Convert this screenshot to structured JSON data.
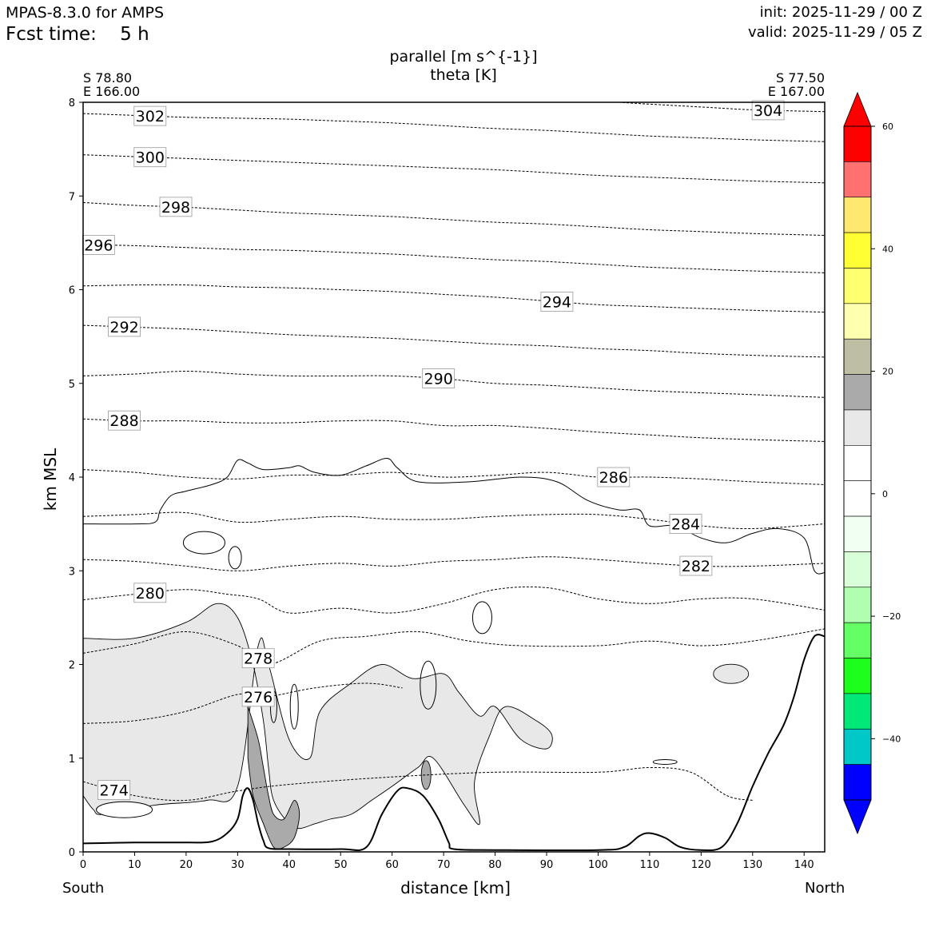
{
  "header": {
    "model": "MPAS-8.3.0 for AMPS",
    "fcst": "Fcst time:    5 h",
    "init": "init: 2025-11-29 / 00 Z",
    "valid": "valid: 2025-11-29 / 05 Z",
    "field1": "parallel [m s^{-1}]",
    "field2": "theta [K]"
  },
  "endpoints": {
    "left_lat": "S 78.80",
    "left_lon": "E 166.00",
    "right_lat": "S 77.50",
    "right_lon": "E 167.00",
    "left_dir": "South",
    "right_dir": "North"
  },
  "chart_data": {
    "type": "cross-section contour",
    "xlabel": "distance [km]",
    "ylabel": "km MSL",
    "xlim": [
      0,
      144
    ],
    "ylim": [
      0,
      8
    ],
    "x_ticks": [
      0,
      10,
      20,
      30,
      40,
      50,
      60,
      70,
      80,
      90,
      100,
      110,
      120,
      130,
      140
    ],
    "y_ticks": [
      0,
      1,
      2,
      3,
      4,
      5,
      6,
      7,
      8
    ],
    "theta_contours": [
      {
        "level": 274,
        "label": "274",
        "x": 6,
        "points": [
          [
            0,
            0.75
          ],
          [
            10,
            0.6
          ],
          [
            20,
            0.55
          ],
          [
            30,
            0.65
          ],
          [
            40,
            0.72
          ],
          [
            60,
            0.8
          ],
          [
            80,
            0.85
          ],
          [
            100,
            0.85
          ],
          [
            110,
            0.9
          ],
          [
            118,
            0.85
          ],
          [
            125,
            0.6
          ],
          [
            130,
            0.55
          ]
        ]
      },
      {
        "level": 276,
        "label": "276",
        "x": 34,
        "points": [
          [
            0,
            1.37
          ],
          [
            10,
            1.4
          ],
          [
            20,
            1.5
          ],
          [
            30,
            1.68
          ],
          [
            35,
            1.65
          ],
          [
            45,
            1.75
          ],
          [
            55,
            1.8
          ],
          [
            62,
            1.75
          ]
        ]
      },
      {
        "level": 278,
        "label": "278",
        "x": 34,
        "points": [
          [
            0,
            2.12
          ],
          [
            10,
            2.22
          ],
          [
            20,
            2.35
          ],
          [
            30,
            2.2
          ],
          [
            36,
            2.0
          ],
          [
            46,
            2.25
          ],
          [
            55,
            2.3
          ],
          [
            65,
            2.35
          ],
          [
            75,
            2.25
          ],
          [
            85,
            2.2
          ],
          [
            100,
            2.2
          ],
          [
            110,
            2.25
          ],
          [
            120,
            2.2
          ],
          [
            130,
            2.25
          ],
          [
            144,
            2.38
          ]
        ]
      },
      {
        "level": 280,
        "label": "280",
        "x": 13,
        "points": [
          [
            0,
            2.69
          ],
          [
            10,
            2.75
          ],
          [
            20,
            2.8
          ],
          [
            28,
            2.75
          ],
          [
            34,
            2.7
          ],
          [
            40,
            2.55
          ],
          [
            50,
            2.6
          ],
          [
            60,
            2.55
          ],
          [
            70,
            2.65
          ],
          [
            80,
            2.8
          ],
          [
            90,
            2.82
          ],
          [
            100,
            2.7
          ],
          [
            110,
            2.65
          ],
          [
            120,
            2.7
          ],
          [
            130,
            2.7
          ],
          [
            144,
            2.58
          ]
        ]
      },
      {
        "level": 282,
        "label": "282",
        "x": 119,
        "points": [
          [
            0,
            3.12
          ],
          [
            10,
            3.1
          ],
          [
            20,
            3.05
          ],
          [
            30,
            3.0
          ],
          [
            40,
            3.05
          ],
          [
            50,
            3.08
          ],
          [
            60,
            3.05
          ],
          [
            70,
            3.1
          ],
          [
            80,
            3.12
          ],
          [
            90,
            3.15
          ],
          [
            100,
            3.12
          ],
          [
            110,
            3.08
          ],
          [
            120,
            3.05
          ],
          [
            130,
            3.05
          ],
          [
            144,
            3.08
          ]
        ]
      },
      {
        "level": 284,
        "label": "284",
        "x": 117,
        "points": [
          [
            0,
            3.58
          ],
          [
            10,
            3.6
          ],
          [
            20,
            3.62
          ],
          [
            30,
            3.52
          ],
          [
            40,
            3.55
          ],
          [
            50,
            3.58
          ],
          [
            60,
            3.55
          ],
          [
            70,
            3.55
          ],
          [
            80,
            3.58
          ],
          [
            90,
            3.6
          ],
          [
            100,
            3.6
          ],
          [
            110,
            3.55
          ],
          [
            120,
            3.48
          ],
          [
            130,
            3.45
          ],
          [
            144,
            3.5
          ]
        ]
      },
      {
        "level": 286,
        "label": "286",
        "x": 103,
        "points": [
          [
            0,
            4.08
          ],
          [
            10,
            4.05
          ],
          [
            20,
            4.0
          ],
          [
            30,
            3.98
          ],
          [
            40,
            4.02
          ],
          [
            50,
            4.02
          ],
          [
            60,
            4.05
          ],
          [
            70,
            4.0
          ],
          [
            80,
            4.02
          ],
          [
            90,
            4.05
          ],
          [
            100,
            4.0
          ],
          [
            110,
            4.0
          ],
          [
            120,
            3.98
          ],
          [
            130,
            3.95
          ],
          [
            144,
            3.92
          ]
        ]
      },
      {
        "level": 288,
        "label": "288",
        "x": 8,
        "points": [
          [
            0,
            4.62
          ],
          [
            10,
            4.6
          ],
          [
            20,
            4.6
          ],
          [
            30,
            4.58
          ],
          [
            40,
            4.58
          ],
          [
            50,
            4.6
          ],
          [
            60,
            4.6
          ],
          [
            70,
            4.55
          ],
          [
            80,
            4.55
          ],
          [
            90,
            4.52
          ],
          [
            100,
            4.48
          ],
          [
            110,
            4.45
          ],
          [
            120,
            4.42
          ],
          [
            130,
            4.4
          ],
          [
            144,
            4.38
          ]
        ]
      },
      {
        "level": 290,
        "label": "290",
        "x": 69,
        "points": [
          [
            0,
            5.08
          ],
          [
            10,
            5.1
          ],
          [
            20,
            5.13
          ],
          [
            30,
            5.1
          ],
          [
            40,
            5.08
          ],
          [
            50,
            5.08
          ],
          [
            60,
            5.08
          ],
          [
            70,
            5.05
          ],
          [
            80,
            5.0
          ],
          [
            90,
            4.98
          ],
          [
            100,
            4.95
          ],
          [
            110,
            4.92
          ],
          [
            120,
            4.9
          ],
          [
            130,
            4.88
          ],
          [
            144,
            4.85
          ]
        ]
      },
      {
        "level": 292,
        "label": "292",
        "x": 8,
        "points": [
          [
            0,
            5.62
          ],
          [
            10,
            5.6
          ],
          [
            20,
            5.58
          ],
          [
            30,
            5.55
          ],
          [
            40,
            5.52
          ],
          [
            50,
            5.5
          ],
          [
            60,
            5.48
          ],
          [
            70,
            5.45
          ],
          [
            80,
            5.42
          ],
          [
            90,
            5.4
          ],
          [
            100,
            5.37
          ],
          [
            110,
            5.35
          ],
          [
            120,
            5.32
          ],
          [
            130,
            5.3
          ],
          [
            144,
            5.28
          ]
        ]
      },
      {
        "level": 294,
        "label": "294",
        "x": 92,
        "points": [
          [
            0,
            6.04
          ],
          [
            10,
            6.05
          ],
          [
            20,
            6.05
          ],
          [
            30,
            6.03
          ],
          [
            40,
            6.02
          ],
          [
            50,
            6.0
          ],
          [
            60,
            5.98
          ],
          [
            70,
            5.95
          ],
          [
            80,
            5.92
          ],
          [
            90,
            5.88
          ],
          [
            100,
            5.84
          ],
          [
            110,
            5.82
          ],
          [
            120,
            5.8
          ],
          [
            130,
            5.78
          ],
          [
            144,
            5.76
          ]
        ]
      },
      {
        "level": 296,
        "label": "296",
        "x": 3,
        "points": [
          [
            0,
            6.48
          ],
          [
            10,
            6.47
          ],
          [
            20,
            6.45
          ],
          [
            30,
            6.43
          ],
          [
            40,
            6.42
          ],
          [
            50,
            6.4
          ],
          [
            60,
            6.38
          ],
          [
            70,
            6.35
          ],
          [
            80,
            6.32
          ],
          [
            90,
            6.3
          ],
          [
            100,
            6.27
          ],
          [
            110,
            6.24
          ],
          [
            120,
            6.22
          ],
          [
            130,
            6.2
          ],
          [
            144,
            6.18
          ]
        ]
      },
      {
        "level": 298,
        "label": "298",
        "x": 18,
        "points": [
          [
            0,
            6.93
          ],
          [
            10,
            6.9
          ],
          [
            20,
            6.88
          ],
          [
            30,
            6.85
          ],
          [
            40,
            6.82
          ],
          [
            50,
            6.8
          ],
          [
            60,
            6.78
          ],
          [
            70,
            6.75
          ],
          [
            80,
            6.72
          ],
          [
            90,
            6.7
          ],
          [
            100,
            6.67
          ],
          [
            110,
            6.64
          ],
          [
            120,
            6.62
          ],
          [
            130,
            6.6
          ],
          [
            144,
            6.58
          ]
        ]
      },
      {
        "level": 300,
        "label": "300",
        "x": 13,
        "points": [
          [
            0,
            7.44
          ],
          [
            10,
            7.42
          ],
          [
            20,
            7.4
          ],
          [
            30,
            7.38
          ],
          [
            40,
            7.36
          ],
          [
            50,
            7.34
          ],
          [
            60,
            7.32
          ],
          [
            70,
            7.3
          ],
          [
            80,
            7.28
          ],
          [
            90,
            7.25
          ],
          [
            100,
            7.22
          ],
          [
            110,
            7.2
          ],
          [
            120,
            7.18
          ],
          [
            130,
            7.16
          ],
          [
            144,
            7.14
          ]
        ]
      },
      {
        "level": 302,
        "label": "302",
        "x": 13,
        "points": [
          [
            0,
            7.88
          ],
          [
            10,
            7.86
          ],
          [
            20,
            7.84
          ],
          [
            30,
            7.83
          ],
          [
            40,
            7.82
          ],
          [
            50,
            7.8
          ],
          [
            60,
            7.78
          ],
          [
            70,
            7.75
          ],
          [
            80,
            7.72
          ],
          [
            90,
            7.7
          ],
          [
            100,
            7.67
          ],
          [
            110,
            7.64
          ],
          [
            120,
            7.62
          ],
          [
            130,
            7.6
          ],
          [
            144,
            7.58
          ]
        ]
      },
      {
        "level": 304,
        "label": "304",
        "x": 133,
        "points": [
          [
            104,
            8.0
          ],
          [
            110,
            7.98
          ],
          [
            120,
            7.95
          ],
          [
            130,
            7.92
          ],
          [
            144,
            7.9
          ]
        ]
      }
    ],
    "terrain": [
      [
        0,
        0.09
      ],
      [
        10,
        0.1
      ],
      [
        20,
        0.1
      ],
      [
        25,
        0.11
      ],
      [
        28,
        0.2
      ],
      [
        30,
        0.35
      ],
      [
        31,
        0.6
      ],
      [
        32,
        0.68
      ],
      [
        33,
        0.55
      ],
      [
        34,
        0.3
      ],
      [
        35,
        0.12
      ],
      [
        36,
        0.04
      ],
      [
        40,
        0.03
      ],
      [
        50,
        0.03
      ],
      [
        55,
        0.05
      ],
      [
        58,
        0.4
      ],
      [
        61,
        0.65
      ],
      [
        63,
        0.68
      ],
      [
        66,
        0.6
      ],
      [
        69,
        0.35
      ],
      [
        71,
        0.1
      ],
      [
        72,
        0.03
      ],
      [
        80,
        0.02
      ],
      [
        100,
        0.02
      ],
      [
        105,
        0.05
      ],
      [
        108,
        0.17
      ],
      [
        110,
        0.2
      ],
      [
        113,
        0.15
      ],
      [
        116,
        0.05
      ],
      [
        120,
        0.02
      ],
      [
        124,
        0.05
      ],
      [
        127,
        0.3
      ],
      [
        130,
        0.7
      ],
      [
        133,
        1.05
      ],
      [
        136,
        1.35
      ],
      [
        138,
        1.65
      ],
      [
        140,
        2.05
      ],
      [
        142,
        2.3
      ],
      [
        144,
        2.3
      ]
    ],
    "colorbar": {
      "ticks": [
        60,
        40,
        20,
        0,
        -20,
        -40
      ],
      "bins": [
        "#ff0000",
        "#ff7070",
        "#ffe870",
        "#ffff33",
        "#ffff70",
        "#ffffb0",
        "#bebea5",
        "#aaaaaa",
        "#e8e8e8",
        "#ffffff",
        "#ffffff",
        "#f0fff0",
        "#d8ffd8",
        "#b0ffb0",
        "#64ff64",
        "#1cff1c",
        "#00e878",
        "#00c8c8",
        "#0000ff"
      ],
      "top_arrow": "#ff0000",
      "bottom_arrow": "#0000ff"
    }
  }
}
